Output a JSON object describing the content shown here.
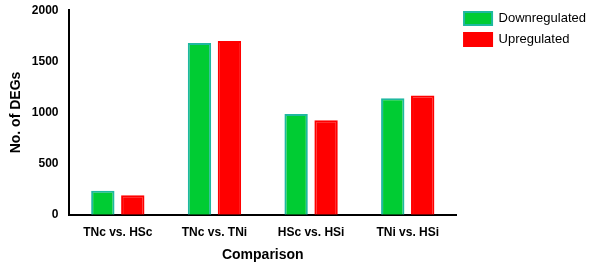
{
  "chart_data": {
    "type": "bar",
    "x_label": "Comparison",
    "y_label": "No. of DEGs",
    "categories": [
      "TNc vs. HSc",
      "TNc vs. TNi",
      "HSc vs. HSi",
      "TNi vs. HSi"
    ],
    "series": [
      {
        "name": "Downregulated",
        "color": "#00cc33",
        "values": [
          235,
          1680,
          985,
          1140
        ]
      },
      {
        "name": "Upregulated",
        "color": "#ff0000",
        "values": [
          190,
          1700,
          925,
          1165
        ]
      }
    ],
    "ylim": [
      0,
      2000
    ],
    "yticks": [
      0,
      500,
      1000,
      1500,
      2000
    ],
    "grid": false,
    "legend": "top-right"
  }
}
